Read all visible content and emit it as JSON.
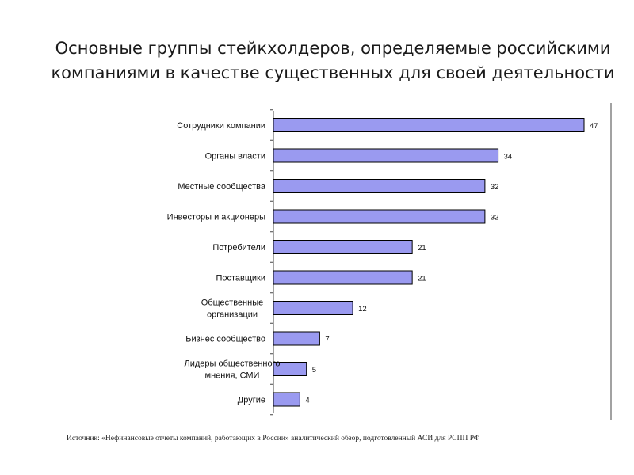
{
  "title_lines": [
    "Основные группы стейкхолдеров, определяемые российскими",
    "компаниями в качестве существенных для своей деятельности"
  ],
  "source": "Источник: «Нефинансовые отчеты компаний, работающих в России» аналитический обзор, подготовленный АСИ для РСПП РФ",
  "chart_data": {
    "type": "bar",
    "orientation": "horizontal",
    "categories": [
      "Сотрудники компании",
      "Органы власти",
      "Местные сообщества",
      "Инвесторы и акционеры",
      "Потребители",
      "Поставщики",
      "Общественные организации",
      "Бизнес сообщество",
      "Лидеры общественного мнения, СМИ",
      "Другие"
    ],
    "category_lines": [
      [
        "Сотрудники компании"
      ],
      [
        "Органы власти"
      ],
      [
        "Местные сообщества"
      ],
      [
        "Инвесторы и акционеры"
      ],
      [
        "Потребители"
      ],
      [
        "Поставщики"
      ],
      [
        "Общественные",
        "организации"
      ],
      [
        "Бизнес сообщество"
      ],
      [
        "Лидеры общественного",
        "мнения, СМИ"
      ],
      [
        "Другие"
      ]
    ],
    "values": [
      47,
      34,
      32,
      32,
      21,
      21,
      12,
      7,
      5,
      4
    ],
    "value_labels": [
      "47",
      "34",
      "32",
      "32",
      "21",
      "21",
      "12",
      "7",
      "5",
      "4"
    ],
    "xlim": [
      0,
      52
    ],
    "bar_color": "#9a9af0",
    "bar_border_color": "#000000",
    "grid": false,
    "legend": "none"
  }
}
